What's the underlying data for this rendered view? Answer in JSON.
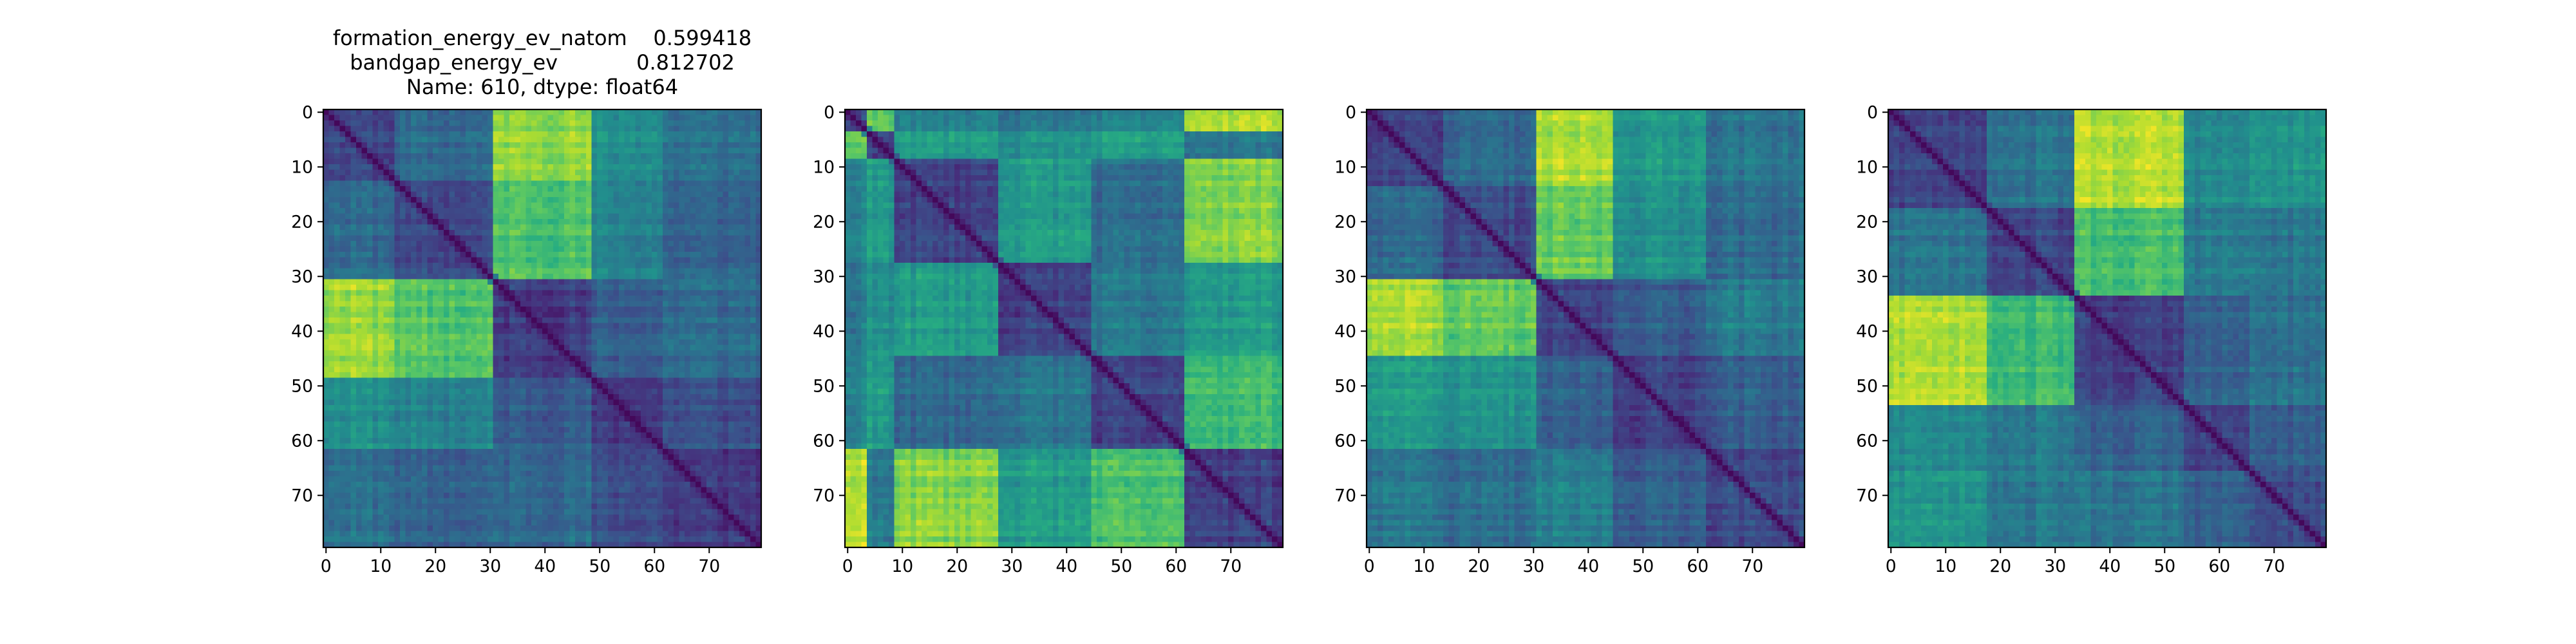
{
  "chart_data": [
    {
      "type": "heatmap",
      "title_lines": [
        "formation_energy_ev_natom    0.599418",
        "bandgap_energy_ev            0.812702",
        "Name: 610, dtype: float64"
      ],
      "xlabel": "",
      "ylabel": "",
      "n": 80,
      "xlim": [
        0,
        79
      ],
      "ylim": [
        79,
        0
      ],
      "xticks": [
        "0",
        "10",
        "20",
        "30",
        "40",
        "50",
        "60",
        "70"
      ],
      "yticks": [
        "0",
        "10",
        "20",
        "30",
        "40",
        "50",
        "60",
        "70"
      ],
      "colormap": "viridis",
      "blocks": [
        [
          0,
          13
        ],
        [
          13,
          31
        ],
        [
          31,
          49
        ],
        [
          49,
          62
        ],
        [
          62,
          80
        ]
      ],
      "block_level": [
        [
          0.22,
          0.35,
          0.85,
          0.5,
          0.38
        ],
        [
          0.35,
          0.22,
          0.72,
          0.45,
          0.32
        ],
        [
          0.85,
          0.72,
          0.18,
          0.3,
          0.35
        ],
        [
          0.5,
          0.45,
          0.3,
          0.18,
          0.25
        ],
        [
          0.38,
          0.32,
          0.35,
          0.25,
          0.18
        ]
      ],
      "seed": 11
    },
    {
      "type": "heatmap",
      "title_lines": [],
      "n": 80,
      "xlim": [
        0,
        79
      ],
      "ylim": [
        79,
        0
      ],
      "xticks": [
        "0",
        "10",
        "20",
        "30",
        "40",
        "50",
        "60",
        "70"
      ],
      "yticks": [
        "0",
        "10",
        "20",
        "30",
        "40",
        "50",
        "60",
        "70"
      ],
      "colormap": "viridis",
      "blocks": [
        [
          0,
          4
        ],
        [
          4,
          9
        ],
        [
          9,
          28
        ],
        [
          28,
          45
        ],
        [
          45,
          62
        ],
        [
          62,
          80
        ]
      ],
      "block_level": [
        [
          0.25,
          0.75,
          0.45,
          0.4,
          0.45,
          0.9
        ],
        [
          0.75,
          0.2,
          0.55,
          0.5,
          0.55,
          0.4
        ],
        [
          0.45,
          0.55,
          0.2,
          0.55,
          0.35,
          0.82
        ],
        [
          0.4,
          0.5,
          0.55,
          0.2,
          0.4,
          0.55
        ],
        [
          0.45,
          0.55,
          0.35,
          0.4,
          0.2,
          0.7
        ],
        [
          0.9,
          0.4,
          0.82,
          0.55,
          0.7,
          0.2
        ]
      ],
      "seed": 23
    },
    {
      "type": "heatmap",
      "title_lines": [],
      "n": 80,
      "xlim": [
        0,
        79
      ],
      "ylim": [
        79,
        0
      ],
      "xticks": [
        "0",
        "10",
        "20",
        "30",
        "40",
        "50",
        "60",
        "70"
      ],
      "yticks": [
        "0",
        "10",
        "20",
        "30",
        "40",
        "50",
        "60",
        "70"
      ],
      "colormap": "viridis",
      "blocks": [
        [
          0,
          14
        ],
        [
          14,
          31
        ],
        [
          31,
          45
        ],
        [
          45,
          62
        ],
        [
          62,
          80
        ]
      ],
      "block_level": [
        [
          0.22,
          0.35,
          0.88,
          0.55,
          0.4
        ],
        [
          0.35,
          0.22,
          0.75,
          0.5,
          0.35
        ],
        [
          0.88,
          0.75,
          0.2,
          0.3,
          0.42
        ],
        [
          0.55,
          0.5,
          0.3,
          0.2,
          0.3
        ],
        [
          0.4,
          0.35,
          0.42,
          0.3,
          0.22
        ]
      ],
      "seed": 37
    },
    {
      "type": "heatmap",
      "title_lines": [],
      "n": 80,
      "xlim": [
        0,
        79
      ],
      "ylim": [
        79,
        0
      ],
      "xticks": [
        "0",
        "10",
        "20",
        "30",
        "40",
        "50",
        "60",
        "70"
      ],
      "yticks": [
        "0",
        "10",
        "20",
        "30",
        "40",
        "50",
        "60",
        "70"
      ],
      "colormap": "viridis",
      "blocks": [
        [
          0,
          18
        ],
        [
          18,
          34
        ],
        [
          34,
          54
        ],
        [
          54,
          66
        ],
        [
          66,
          80
        ]
      ],
      "block_level": [
        [
          0.22,
          0.4,
          0.9,
          0.48,
          0.52
        ],
        [
          0.4,
          0.22,
          0.7,
          0.42,
          0.4
        ],
        [
          0.9,
          0.7,
          0.2,
          0.32,
          0.38
        ],
        [
          0.48,
          0.42,
          0.32,
          0.2,
          0.3
        ],
        [
          0.52,
          0.4,
          0.38,
          0.3,
          0.22
        ]
      ],
      "seed": 53
    }
  ]
}
